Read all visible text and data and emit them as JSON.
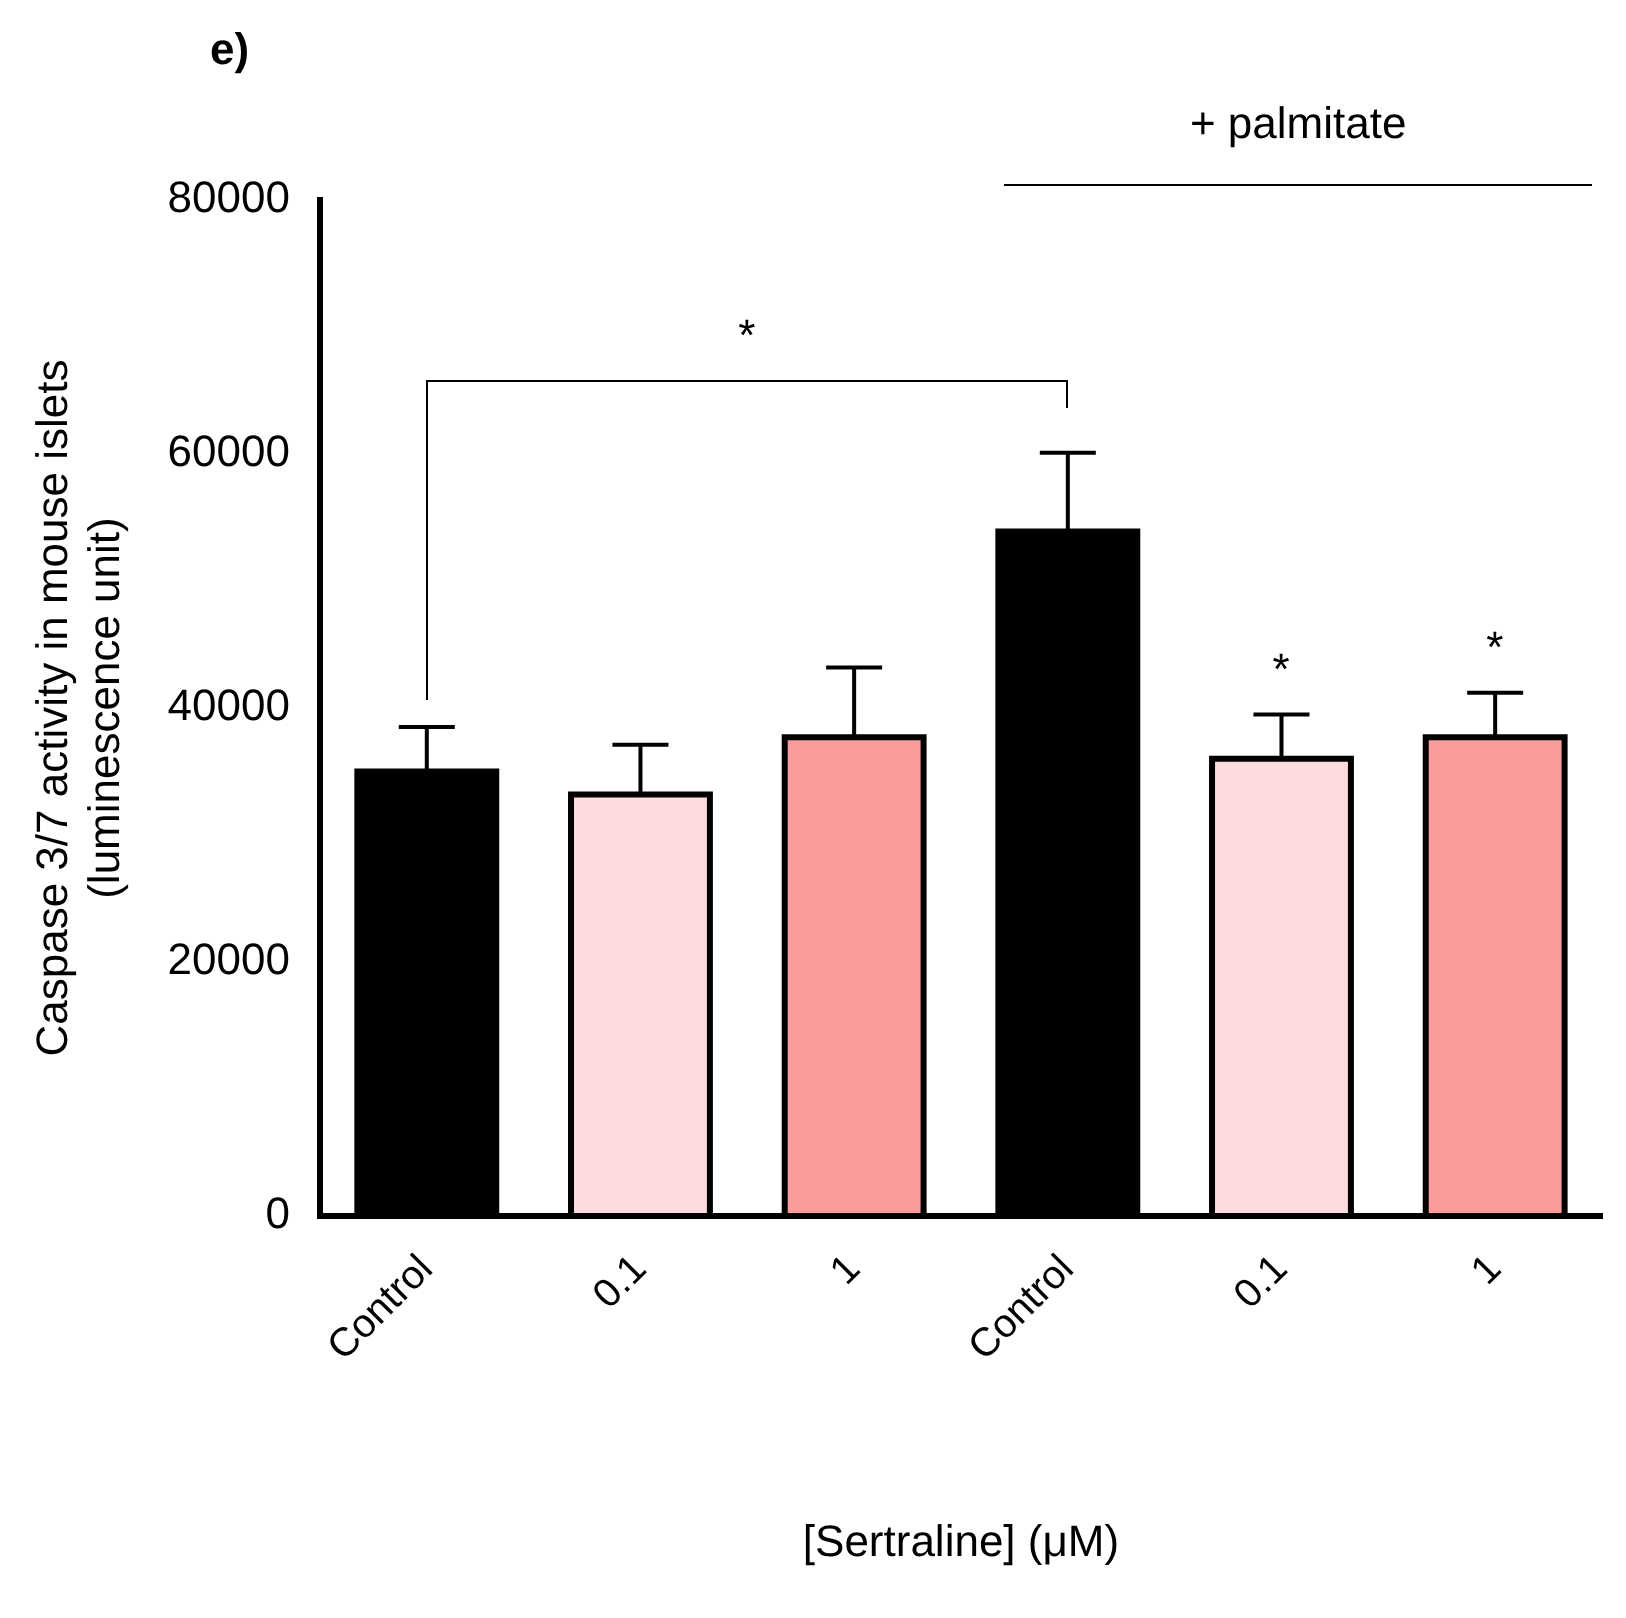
{
  "chart_data": {
    "type": "bar",
    "ylabel": "Caspase 3/7 activity in mouse islets\n(luminescence unit)",
    "xlabel": "[Sertraline] (μM)",
    "categories": [
      "Control",
      "0.1",
      "1",
      "Control",
      "0.1",
      "1"
    ],
    "values": [
      35000,
      33200,
      37700,
      53900,
      36000,
      37700
    ],
    "errors": [
      [
        35000,
        38500
      ],
      [
        33200,
        37100
      ],
      [
        37700,
        43200
      ],
      [
        53900,
        60100
      ],
      [
        36000,
        39500
      ],
      [
        37700,
        41200
      ]
    ],
    "colors": [
      "#000000",
      "#fddcdd",
      "#fb9c9c",
      "#000000",
      "#fddcdd",
      "#fb9c9c"
    ],
    "ylim": [
      0,
      80000
    ],
    "yticks": [
      0,
      20000,
      40000,
      60000,
      80000
    ],
    "grid": false,
    "legend": false,
    "annotations": [
      "e)",
      "+ palmitate",
      "*",
      "*",
      "*"
    ]
  }
}
